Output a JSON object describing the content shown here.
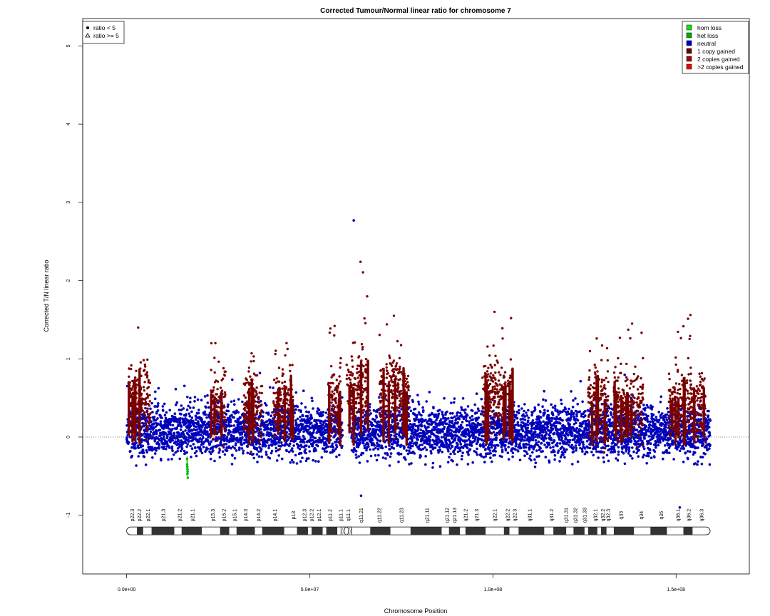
{
  "chart_data": {
    "type": "scatter",
    "title": "Corrected Tumour/Normal linear ratio for chromosome  7",
    "xlabel": "Chromosome Position",
    "ylabel": "Corrected T/N linear ratio",
    "xlim": [
      -12000000,
      170000000
    ],
    "ylim": [
      -1.75,
      5.35
    ],
    "x_ticks": [
      0,
      50000000,
      100000000,
      150000000
    ],
    "x_tick_labels": [
      "0.0e+00",
      "5.0e+07",
      "1.0e+08",
      "1.5e+08"
    ],
    "y_ticks": [
      -1,
      0,
      1,
      2,
      3,
      4,
      5
    ],
    "y_tick_labels": [
      "−1",
      "0",
      "1",
      "2",
      "3",
      "4",
      "5"
    ],
    "reference_line_y": 0,
    "chromosome_length": 159300000,
    "shape_legend": {
      "placement": "top-left",
      "items": [
        {
          "symbol": "dot",
          "label": "ratio < 5"
        },
        {
          "symbol": "triangle",
          "label": "ratio >= 5"
        }
      ]
    },
    "state_legend": {
      "placement": "top-right",
      "items": [
        {
          "label": "hom loss",
          "color": "#00ee00"
        },
        {
          "label": "het loss",
          "color": "#00aa00"
        },
        {
          "label": "neutral",
          "color": "#0000bb"
        },
        {
          "label": "1 copy gained",
          "color": "#6e0000"
        },
        {
          "label": "2 copies gained",
          "color": "#aa0000"
        },
        {
          "label": ">2 copies gained",
          "color": "#ee0000"
        }
      ]
    },
    "series": [
      {
        "name": "neutral",
        "color": "#0000bb",
        "neutral_range": [
          -0.4,
          0.55
        ]
      },
      {
        "name": "1 copy gained",
        "color": "#7a0000",
        "regions": [
          {
            "start": 500000,
            "end": 6500000,
            "center": 0.5,
            "peak": 1.4
          },
          {
            "start": 23000000,
            "end": 27000000,
            "center": 0.4,
            "peak": 1.2
          },
          {
            "start": 32000000,
            "end": 37000000,
            "center": 0.4,
            "peak": 1.07
          },
          {
            "start": 40000000,
            "end": 45500000,
            "center": 0.4,
            "peak": 1.2
          },
          {
            "start": 55000000,
            "end": 58500000,
            "center": 0.45,
            "peak": 1.42
          },
          {
            "start": 60000000,
            "end": 66000000,
            "center": 0.6,
            "peak": 2.24
          },
          {
            "start": 69000000,
            "end": 77000000,
            "center": 0.55,
            "peak": 1.55
          },
          {
            "start": 97000000,
            "end": 103500000,
            "center": 0.55,
            "peak": 1.6
          },
          {
            "start": 104000000,
            "end": 105500000,
            "center": 0.5,
            "peak": 1.52
          },
          {
            "start": 126000000,
            "end": 131500000,
            "center": 0.4,
            "peak": 1.26
          },
          {
            "start": 133000000,
            "end": 141000000,
            "center": 0.4,
            "peak": 1.45
          },
          {
            "start": 148000000,
            "end": 158000000,
            "center": 0.4,
            "peak": 1.56
          }
        ]
      },
      {
        "name": "het loss",
        "color": "#00bb00",
        "points": [
          [
            16500000,
            -0.28
          ],
          [
            16500000,
            -0.35
          ],
          [
            16600000,
            -0.41
          ],
          [
            16600000,
            -0.47
          ],
          [
            16700000,
            -0.52
          ],
          [
            16550000,
            -0.38
          ],
          [
            16650000,
            -0.44
          ]
        ]
      }
    ],
    "outliers": [
      [
        62000000,
        2.77
      ],
      [
        64000000,
        -0.75
      ],
      [
        151000000,
        -0.9
      ]
    ],
    "cytobands": {
      "labels": [
        "p22.3",
        "p22.2",
        "p22.1",
        "p21.3",
        "p21.2",
        "p21.1",
        "p15.3",
        "p15.2",
        "p15.1",
        "p14.3",
        "p14.2",
        "p14.1",
        "p13",
        "p12.3",
        "p12.2",
        "p12.1",
        "p11.2",
        "p11.1",
        "q11.1",
        "q11.21",
        "q11.22",
        "q11.23",
        "q21.11",
        "q21.12",
        "q21.13",
        "q21.2",
        "q21.3",
        "q22.1",
        "q22.2",
        "q22.3",
        "q31.1",
        "q31.2",
        "q31.31",
        "q31.32",
        "q31.33",
        "q32.1",
        "q32.2",
        "q32.3",
        "q33",
        "q34",
        "q35",
        "q36.1",
        "q36.2",
        "q36.3"
      ],
      "label_positions": [
        1500000,
        3500000,
        5800000,
        10000000,
        14500000,
        18000000,
        23500000,
        26500000,
        29500000,
        32500000,
        36000000,
        40500000,
        45500000,
        48500000,
        50500000,
        52500000,
        55500000,
        58500000,
        60500000,
        64000000,
        69000000,
        75000000,
        82000000,
        87500000,
        89500000,
        92500000,
        95500000,
        100500000,
        104000000,
        106000000,
        110000000,
        116000000,
        120000000,
        122500000,
        125000000,
        128000000,
        130000000,
        131500000,
        135000000,
        140500000,
        146000000,
        150500000,
        153500000,
        157000000
      ],
      "dark_bands": [
        [
          2800000,
          4500000
        ],
        [
          6800000,
          13000000
        ],
        [
          15000000,
          20500000
        ],
        [
          25500000,
          28000000
        ],
        [
          30000000,
          35000000
        ],
        [
          37000000,
          43000000
        ],
        [
          46500000,
          49500000
        ],
        [
          50500000,
          53500000
        ],
        [
          54500000,
          57500000
        ],
        [
          66500000,
          72000000
        ],
        [
          77500000,
          86000000
        ],
        [
          88000000,
          91000000
        ],
        [
          92500000,
          98000000
        ],
        [
          103000000,
          104500000
        ],
        [
          107000000,
          114000000
        ],
        [
          116500000,
          120000000
        ],
        [
          122000000,
          125000000
        ],
        [
          126000000,
          128500000
        ],
        [
          129500000,
          131000000
        ],
        [
          133000000,
          138500000
        ],
        [
          143000000,
          147500000
        ],
        [
          152000000,
          154500000
        ]
      ],
      "centromere": [
        58500000,
        61500000
      ]
    }
  }
}
